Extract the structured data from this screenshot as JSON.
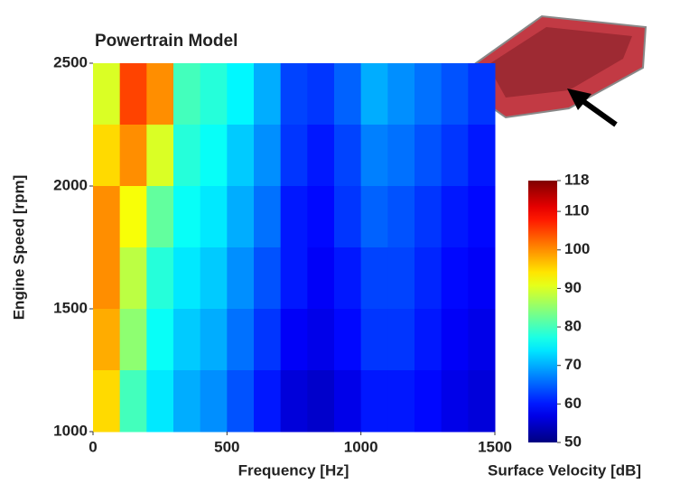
{
  "chart_data": {
    "type": "heatmap",
    "title": "Powertrain Model",
    "xlabel": "Frequency [Hz]",
    "ylabel": "Engine Speed [rpm]",
    "colorbar_label": "Surface Velocity [dB]",
    "x": [
      50,
      150,
      250,
      350,
      450,
      550,
      650,
      750,
      850,
      950,
      1050,
      1150,
      1250,
      1350,
      1450
    ],
    "y": [
      2375,
      2125,
      1875,
      1625,
      1375,
      1125
    ],
    "z": [
      [
        90,
        105,
        100,
        80,
        78,
        75,
        70,
        63,
        62,
        65,
        70,
        68,
        66,
        64,
        62
      ],
      [
        95,
        100,
        90,
        78,
        76,
        72,
        68,
        62,
        60,
        63,
        67,
        66,
        64,
        62,
        60
      ],
      [
        100,
        92,
        82,
        76,
        74,
        70,
        66,
        60,
        59,
        62,
        65,
        64,
        62,
        60,
        59
      ],
      [
        100,
        88,
        78,
        74,
        72,
        68,
        64,
        60,
        58,
        60,
        63,
        63,
        61,
        59,
        58
      ],
      [
        98,
        85,
        76,
        72,
        70,
        66,
        62,
        58,
        57,
        59,
        62,
        62,
        60,
        58,
        57
      ],
      [
        95,
        80,
        74,
        70,
        68,
        64,
        60,
        56,
        55,
        57,
        60,
        60,
        59,
        57,
        56
      ]
    ],
    "xlim": [
      0,
      1500
    ],
    "xticks": [
      0,
      500,
      1000,
      1500
    ],
    "ylim": [
      1000,
      2500
    ],
    "yticks": [
      1000,
      1500,
      2000,
      2500
    ],
    "clim": [
      50,
      118
    ],
    "cticks": [
      50,
      60,
      70,
      80,
      90,
      100,
      110,
      118
    ],
    "colormap": "jet"
  }
}
